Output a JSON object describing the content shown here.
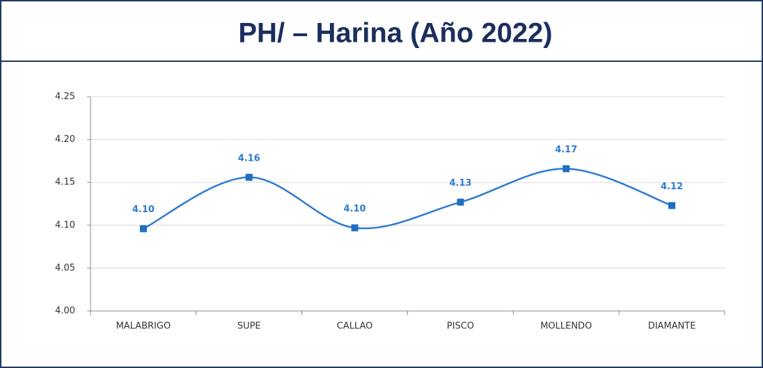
{
  "chart_data": {
    "type": "line",
    "title": "PH/ – Harina (Año 2022)",
    "categories": [
      "MALABRIGO",
      "SUPE",
      "CALLAO",
      "PISCO",
      "MOLLENDO",
      "DIAMANTE"
    ],
    "series": [
      {
        "color": "#2e7bcf",
        "values": [
          4.096,
          4.156,
          4.097,
          4.127,
          4.166,
          4.123
        ],
        "value_labels": [
          "4.10",
          "4.16",
          "4.10",
          "4.13",
          "4.17",
          "4.12"
        ]
      }
    ],
    "ylim": [
      4.0,
      4.25
    ],
    "yticks": [
      {
        "value": 4.0,
        "label": "4.00"
      },
      4.05,
      {
        "value": 4.1,
        "label": "4.10"
      },
      4.15,
      {
        "value": 4.2,
        "label": "4.20"
      },
      4.25
    ],
    "grid": true,
    "smooth": true
  }
}
